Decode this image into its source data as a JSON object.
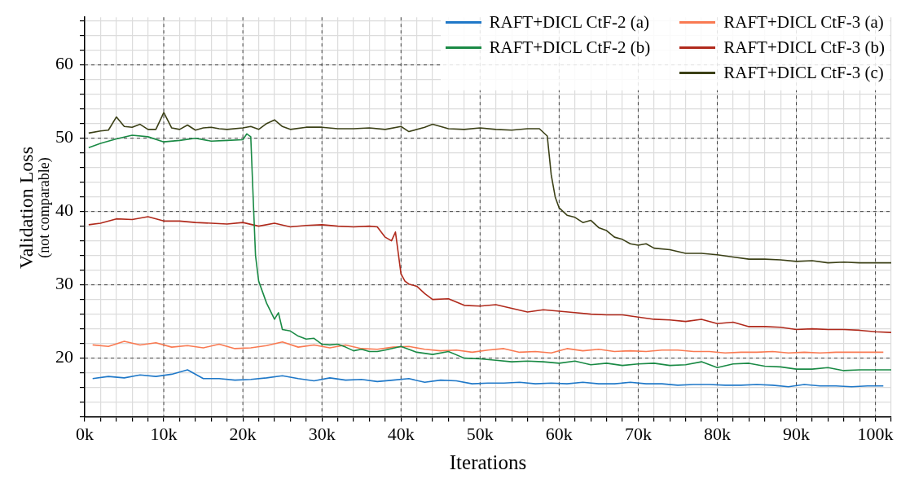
{
  "chart_data": {
    "type": "line",
    "xlabel": "Iterations",
    "ylabel": "Validation Loss\n(not comparable)",
    "legend": "top right",
    "grid": true,
    "marker": "none",
    "line_style": "solid",
    "xlim": [
      0,
      102000
    ],
    "ylim": [
      12,
      66.5
    ],
    "xticks": [
      {
        "value": 0,
        "label": "0k"
      },
      {
        "value": 2000,
        "label": null
      },
      {
        "value": 4000,
        "label": null
      },
      {
        "value": 6000,
        "label": null
      },
      {
        "value": 8000,
        "label": null
      },
      {
        "value": 10000,
        "label": "10k"
      },
      {
        "value": 12000,
        "label": null
      },
      {
        "value": 14000,
        "label": null
      },
      {
        "value": 16000,
        "label": null
      },
      {
        "value": 18000,
        "label": null
      },
      {
        "value": 20000,
        "label": "20k"
      },
      {
        "value": 22000,
        "label": null
      },
      {
        "value": 24000,
        "label": null
      },
      {
        "value": 26000,
        "label": null
      },
      {
        "value": 28000,
        "label": null
      },
      {
        "value": 30000,
        "label": "30k"
      },
      {
        "value": 32000,
        "label": null
      },
      {
        "value": 34000,
        "label": null
      },
      {
        "value": 36000,
        "label": null
      },
      {
        "value": 38000,
        "label": null
      },
      {
        "value": 40000,
        "label": "40k"
      },
      {
        "value": 42000,
        "label": null
      },
      {
        "value": 44000,
        "label": null
      },
      {
        "value": 46000,
        "label": null
      },
      {
        "value": 48000,
        "label": null
      },
      {
        "value": 50000,
        "label": "50k"
      },
      {
        "value": 52000,
        "label": null
      },
      {
        "value": 54000,
        "label": null
      },
      {
        "value": 56000,
        "label": null
      },
      {
        "value": 58000,
        "label": null
      },
      {
        "value": 60000,
        "label": "60k"
      },
      {
        "value": 62000,
        "label": null
      },
      {
        "value": 64000,
        "label": null
      },
      {
        "value": 66000,
        "label": null
      },
      {
        "value": 68000,
        "label": null
      },
      {
        "value": 70000,
        "label": "70k"
      },
      {
        "value": 72000,
        "label": null
      },
      {
        "value": 74000,
        "label": null
      },
      {
        "value": 76000,
        "label": null
      },
      {
        "value": 78000,
        "label": null
      },
      {
        "value": 80000,
        "label": "80k"
      },
      {
        "value": 82000,
        "label": null
      },
      {
        "value": 84000,
        "label": null
      },
      {
        "value": 86000,
        "label": null
      },
      {
        "value": 88000,
        "label": null
      },
      {
        "value": 90000,
        "label": "90k"
      },
      {
        "value": 92000,
        "label": null
      },
      {
        "value": 94000,
        "label": null
      },
      {
        "value": 96000,
        "label": null
      },
      {
        "value": 98000,
        "label": null
      },
      {
        "value": 100000,
        "label": "100k"
      },
      {
        "value": 102000,
        "label": null
      }
    ],
    "yticks": [
      {
        "value": 12,
        "label": null
      },
      {
        "value": 14,
        "label": null
      },
      {
        "value": 16,
        "label": null
      },
      {
        "value": 18,
        "label": null
      },
      20,
      {
        "value": 22,
        "label": null
      },
      {
        "value": 24,
        "label": null
      },
      {
        "value": 26,
        "label": null
      },
      {
        "value": 28,
        "label": null
      },
      30,
      {
        "value": 32,
        "label": null
      },
      {
        "value": 34,
        "label": null
      },
      {
        "value": 36,
        "label": null
      },
      {
        "value": 38,
        "label": null
      },
      40,
      {
        "value": 42,
        "label": null
      },
      {
        "value": 44,
        "label": null
      },
      {
        "value": 46,
        "label": null
      },
      {
        "value": 48,
        "label": null
      },
      50,
      {
        "value": 52,
        "label": null
      },
      {
        "value": 54,
        "label": null
      },
      {
        "value": 56,
        "label": null
      },
      {
        "value": 58,
        "label": null
      },
      60,
      {
        "value": 62,
        "label": null
      },
      {
        "value": 64,
        "label": null
      },
      {
        "value": 66,
        "label": null
      }
    ],
    "series": [
      {
        "name": "RAFT+DICL CtF-2 (a)",
        "color": "#1f78c8",
        "x": [
          1000,
          3000,
          5000,
          7000,
          9000,
          11000,
          13000,
          15000,
          17000,
          19000,
          21000,
          23000,
          25000,
          27000,
          29000,
          31000,
          33000,
          35000,
          37000,
          39000,
          41000,
          43000,
          45000,
          47000,
          49000,
          51000,
          53000,
          55000,
          57000,
          59000,
          61000,
          63000,
          65000,
          67000,
          69000,
          71000,
          73000,
          75000,
          77000,
          79000,
          81000,
          83000,
          85000,
          87000,
          89000,
          91000,
          93000,
          95000,
          97000,
          99000,
          101000
        ],
        "values": [
          17.2,
          17.5,
          17.3,
          17.7,
          17.5,
          17.8,
          18.4,
          17.2,
          17.2,
          17.0,
          17.1,
          17.3,
          17.6,
          17.2,
          16.9,
          17.3,
          17.0,
          17.1,
          16.8,
          17.0,
          17.2,
          16.7,
          17.0,
          16.9,
          16.5,
          16.6,
          16.6,
          16.7,
          16.5,
          16.6,
          16.5,
          16.7,
          16.5,
          16.5,
          16.7,
          16.5,
          16.5,
          16.3,
          16.4,
          16.4,
          16.3,
          16.3,
          16.4,
          16.3,
          16.1,
          16.4,
          16.2,
          16.2,
          16.1,
          16.2,
          16.2
        ]
      },
      {
        "name": "RAFT+DICL CtF-2 (b)",
        "color": "#1a8a45",
        "x": [
          500,
          2000,
          4000,
          6000,
          8000,
          10000,
          12000,
          14000,
          16000,
          18000,
          20000,
          20500,
          21000,
          21300,
          21600,
          22000,
          23000,
          24000,
          24500,
          25000,
          26000,
          27000,
          28000,
          29000,
          30000,
          31000,
          32000,
          33000,
          34000,
          35000,
          36000,
          37000,
          38000,
          40000,
          42000,
          44000,
          46000,
          48000,
          50000,
          52000,
          54000,
          56000,
          58000,
          60000,
          62000,
          64000,
          66000,
          68000,
          70000,
          72000,
          74000,
          76000,
          78000,
          80000,
          82000,
          84000,
          86000,
          88000,
          90000,
          92000,
          94000,
          96000,
          98000,
          100000,
          102000
        ],
        "values": [
          48.7,
          49.3,
          49.9,
          50.4,
          50.2,
          49.5,
          49.7,
          50.0,
          49.6,
          49.7,
          49.8,
          50.6,
          50.2,
          42,
          34,
          30.5,
          27.5,
          25.3,
          26.2,
          23.9,
          23.7,
          23.0,
          22.6,
          22.7,
          21.9,
          21.8,
          21.9,
          21.5,
          21.0,
          21.2,
          20.9,
          20.9,
          21.1,
          21.6,
          20.8,
          20.5,
          20.9,
          20.0,
          19.9,
          19.7,
          19.5,
          19.6,
          19.5,
          19.3,
          19.6,
          19.1,
          19.3,
          19.0,
          19.2,
          19.3,
          19.0,
          19.1,
          19.5,
          18.7,
          19.2,
          19.3,
          18.9,
          18.8,
          18.5,
          18.5,
          18.7,
          18.3,
          18.4,
          18.4,
          18.4
        ]
      },
      {
        "name": "RAFT+DICL CtF-3 (a)",
        "color": "#f97a52",
        "x": [
          1000,
          3000,
          5000,
          7000,
          9000,
          11000,
          13000,
          15000,
          17000,
          19000,
          21000,
          23000,
          25000,
          27000,
          29000,
          31000,
          33000,
          35000,
          37000,
          39000,
          41000,
          43000,
          45000,
          47000,
          49000,
          51000,
          53000,
          55000,
          57000,
          59000,
          61000,
          63000,
          65000,
          67000,
          69000,
          71000,
          73000,
          75000,
          77000,
          79000,
          81000,
          83000,
          85000,
          87000,
          89000,
          91000,
          93000,
          95000,
          97000,
          99000,
          101000
        ],
        "values": [
          21.8,
          21.6,
          22.3,
          21.8,
          22.1,
          21.5,
          21.7,
          21.4,
          21.9,
          21.3,
          21.4,
          21.7,
          22.2,
          21.5,
          21.8,
          21.4,
          21.8,
          21.3,
          21.2,
          21.5,
          21.6,
          21.2,
          21.0,
          21.1,
          20.8,
          21.1,
          21.3,
          20.8,
          20.9,
          20.7,
          21.3,
          21.0,
          21.2,
          20.9,
          21.0,
          20.9,
          21.1,
          21.1,
          20.9,
          20.9,
          20.7,
          20.8,
          20.8,
          20.9,
          20.7,
          20.8,
          20.7,
          20.8,
          20.8,
          20.8,
          20.8
        ]
      },
      {
        "name": "RAFT+DICL CtF-3 (b)",
        "color": "#b02a1c",
        "x": [
          500,
          2000,
          4000,
          6000,
          8000,
          10000,
          12000,
          14000,
          16000,
          18000,
          20000,
          22000,
          24000,
          26000,
          28000,
          30000,
          32000,
          34000,
          36000,
          37000,
          38000,
          38800,
          39300,
          40000,
          40500,
          41000,
          42000,
          43000,
          44000,
          46000,
          48000,
          50000,
          52000,
          54000,
          56000,
          58000,
          60000,
          62000,
          64000,
          66000,
          68000,
          70000,
          72000,
          74000,
          76000,
          78000,
          80000,
          82000,
          84000,
          86000,
          88000,
          90000,
          92000,
          94000,
          96000,
          98000,
          100000,
          102000
        ],
        "values": [
          38.2,
          38.4,
          39.0,
          38.9,
          39.3,
          38.7,
          38.7,
          38.5,
          38.4,
          38.3,
          38.5,
          38.0,
          38.4,
          37.9,
          38.1,
          38.2,
          38.0,
          37.9,
          38.0,
          37.9,
          36.5,
          36.0,
          37.2,
          31.5,
          30.5,
          30.1,
          29.8,
          28.8,
          28.0,
          28.1,
          27.2,
          27.1,
          27.3,
          26.8,
          26.3,
          26.6,
          26.4,
          26.2,
          26.0,
          25.9,
          25.9,
          25.6,
          25.3,
          25.2,
          25.0,
          25.3,
          24.7,
          24.9,
          24.3,
          24.3,
          24.2,
          23.9,
          24.0,
          23.9,
          23.9,
          23.8,
          23.6,
          23.5
        ]
      },
      {
        "name": "RAFT+DICL CtF-3 (c)",
        "color": "#3b4016",
        "x": [
          500,
          2000,
          3000,
          4000,
          5000,
          6000,
          7000,
          8000,
          9000,
          10000,
          11000,
          12000,
          13000,
          14000,
          15000,
          16000,
          17000,
          18000,
          20000,
          21000,
          22000,
          23000,
          24000,
          25000,
          26000,
          28000,
          30000,
          32000,
          34000,
          36000,
          38000,
          40000,
          41000,
          43000,
          44000,
          46000,
          48000,
          50000,
          52000,
          54000,
          56000,
          57500,
          58500,
          59000,
          59500,
          60000,
          61000,
          62000,
          63000,
          64000,
          65000,
          66000,
          67000,
          68000,
          69000,
          70000,
          71000,
          72000,
          74000,
          76000,
          78000,
          80000,
          82000,
          84000,
          86000,
          88000,
          90000,
          92000,
          94000,
          96000,
          98000,
          100000,
          102000
        ],
        "values": [
          50.7,
          51.0,
          51.1,
          52.9,
          51.6,
          51.5,
          51.9,
          51.2,
          51.2,
          53.5,
          51.4,
          51.2,
          51.8,
          51.1,
          51.4,
          51.5,
          51.3,
          51.2,
          51.4,
          51.6,
          51.2,
          52.0,
          52.5,
          51.6,
          51.2,
          51.5,
          51.5,
          51.3,
          51.3,
          51.4,
          51.2,
          51.6,
          50.9,
          51.5,
          51.9,
          51.3,
          51.2,
          51.4,
          51.2,
          51.1,
          51.3,
          51.3,
          50.3,
          45,
          42,
          40.5,
          39.5,
          39.2,
          38.5,
          38.8,
          37.8,
          37.4,
          36.5,
          36.2,
          35.6,
          35.4,
          35.6,
          35.0,
          34.8,
          34.3,
          34.3,
          34.1,
          33.8,
          33.5,
          33.5,
          33.4,
          33.2,
          33.3,
          33.0,
          33.1,
          33.0,
          33.0,
          33.0
        ]
      }
    ]
  }
}
